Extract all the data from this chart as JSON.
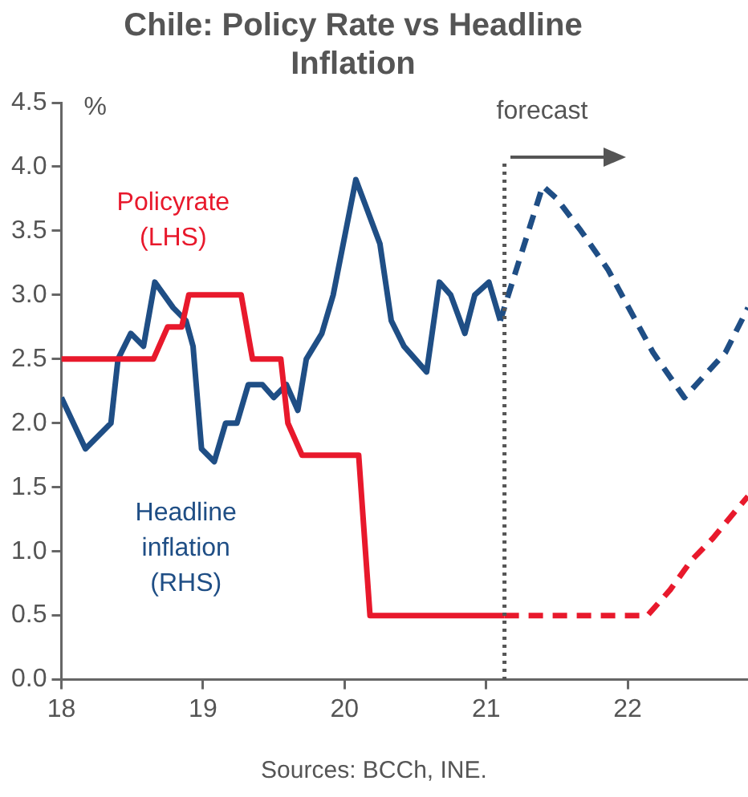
{
  "chart_data": {
    "type": "line",
    "title": "Chile: Policy Rate vs Headline Inflation",
    "ylabel": "%",
    "xlim": [
      18,
      22.85
    ],
    "xticks": [
      18,
      19,
      20,
      21,
      22
    ],
    "ylim": [
      0,
      4.5
    ],
    "yticks": [
      {
        "value": 0,
        "label": "0.0"
      },
      0.5,
      {
        "value": 1,
        "label": "1.0"
      },
      1.5,
      {
        "value": 2,
        "label": "2.0"
      },
      2.5,
      {
        "value": 3,
        "label": "3.0"
      },
      3.5,
      {
        "value": 4,
        "label": "4.0"
      },
      4.5
    ],
    "grid": false,
    "legend": false,
    "marker": "none",
    "series": [
      {
        "name": "Policyrate (LHS)",
        "color": "#e8192c",
        "line_style": "solid",
        "x": [
          18,
          18.65,
          18.75,
          18.85,
          18.9,
          19.27,
          19.35,
          19.55,
          19.6,
          19.7,
          20.1,
          20.18,
          21.13
        ],
        "values": [
          2.5,
          2.5,
          2.75,
          2.75,
          3.0,
          3.0,
          2.5,
          2.5,
          2.0,
          1.75,
          1.75,
          0.5,
          0.5
        ]
      },
      {
        "color": "#e8192c",
        "line_style": "dashed",
        "x": [
          21.13,
          22.14,
          22.3,
          22.45,
          22.6,
          22.75,
          22.85
        ],
        "values": [
          0.5,
          0.5,
          0.7,
          0.93,
          1.1,
          1.3,
          1.43
        ]
      },
      {
        "name": "Headline inflation (RHS)",
        "color": "#1f4e85",
        "line_style": "solid",
        "x": [
          18,
          18.17,
          18.35,
          18.4,
          18.49,
          18.58,
          18.66,
          18.79,
          18.88,
          18.93,
          18.99,
          19.08,
          19.16,
          19.24,
          19.32,
          19.42,
          19.5,
          19.59,
          19.67,
          19.73,
          19.84,
          19.92,
          20.08,
          20.25,
          20.33,
          20.42,
          20.58,
          20.67,
          20.75,
          20.85,
          20.92,
          21.02,
          21.1
        ],
        "values": [
          2.2,
          1.8,
          2.0,
          2.5,
          2.7,
          2.6,
          3.1,
          2.9,
          2.8,
          2.6,
          1.8,
          1.7,
          2.0,
          2.0,
          2.3,
          2.3,
          2.2,
          2.3,
          2.1,
          2.5,
          2.7,
          3.0,
          3.9,
          3.4,
          2.8,
          2.6,
          2.4,
          3.1,
          3.0,
          2.7,
          3.0,
          3.1,
          2.8
        ]
      },
      {
        "color": "#1f4e85",
        "line_style": "dashed",
        "x": [
          21.1,
          21.4,
          21.5,
          21.67,
          21.86,
          22.18,
          22.4,
          22.69,
          22.85
        ],
        "values": [
          2.8,
          3.85,
          3.75,
          3.5,
          3.2,
          2.55,
          2.2,
          2.55,
          2.9
        ]
      }
    ],
    "ref_lines": [
      {
        "axis": "x",
        "value": 21.13,
        "label": "forecast",
        "color": "#555555",
        "line_style": "dotted"
      }
    ],
    "annotations": [
      "Sources: BCCh, INE."
    ]
  }
}
